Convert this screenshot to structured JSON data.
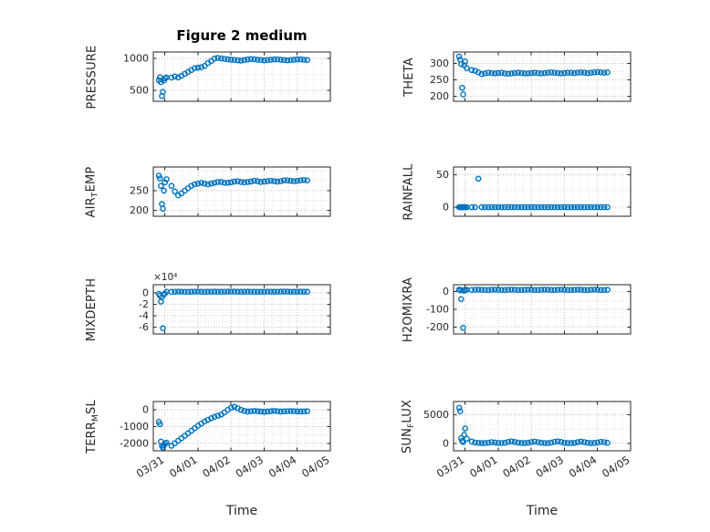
{
  "figure": {
    "title": "Figure 2 medium",
    "background": "#ffffff"
  },
  "chart_data": {
    "type": "scatter",
    "marker": {
      "shape": "circle-open",
      "color": "#0072BD",
      "radius_px": 2.6
    },
    "grid": {
      "on": true,
      "style": "dotted",
      "major_color": "#c2c2c2",
      "minor_color": "#e2e2e2"
    },
    "axis_color": "#262626",
    "x_axis": {
      "label": "Time",
      "xlim": [
        -0.35,
        5.0
      ],
      "ticks": [
        0,
        1,
        2,
        3,
        4,
        5
      ],
      "tick_labels": [
        "03/31",
        "04/01",
        "04/02",
        "04/03",
        "04/04",
        "04/05"
      ]
    },
    "x": [
      -0.18,
      -0.15,
      -0.12,
      -0.09,
      -0.06,
      -0.03,
      0,
      0.05,
      0.2,
      0.3,
      0.4,
      0.5,
      0.6,
      0.7,
      0.8,
      0.9,
      1.0,
      1.1,
      1.2,
      1.3,
      1.4,
      1.5,
      1.6,
      1.7,
      1.8,
      1.9,
      2.0,
      2.1,
      2.2,
      2.3,
      2.4,
      2.5,
      2.6,
      2.7,
      2.8,
      2.9,
      3.0,
      3.1,
      3.2,
      3.3,
      3.4,
      3.5,
      3.6,
      3.7,
      3.8,
      3.9,
      4.0,
      4.1,
      4.2,
      4.3
    ],
    "plots": [
      {
        "id": "pressure",
        "row": 0,
        "col": 0,
        "ylabel": [
          {
            "t": "PRESSURE"
          }
        ],
        "ylim": [
          330,
          1100
        ],
        "yticks": [
          500,
          1000
        ],
        "show_x_tick_labels": false,
        "y": [
          660,
          705,
          628,
          412,
          478,
          655,
          690,
          702,
          700,
          718,
          702,
          728,
          758,
          788,
          818,
          848,
          856,
          862,
          882,
          928,
          958,
          998,
          1008,
          1000,
          992,
          986,
          980,
          976,
          970,
          966,
          974,
          984,
          990,
          986,
          980,
          976,
          970,
          975,
          980,
          985,
          985,
          980,
          975,
          970,
          975,
          980,
          985,
          985,
          980,
          975
        ]
      },
      {
        "id": "theta",
        "row": 0,
        "col": 1,
        "ylabel": [
          {
            "t": "THETA"
          }
        ],
        "ylim": [
          185,
          335
        ],
        "yticks": [
          200,
          250,
          300
        ],
        "show_x_tick_labels": false,
        "y": [
          321,
          312,
          298,
          226,
          206,
          295,
          306,
          286,
          280,
          278,
          273,
          268,
          270,
          272,
          271,
          270,
          271,
          272,
          270,
          269,
          270,
          271,
          272,
          271,
          270,
          270,
          271,
          272,
          271,
          270,
          271,
          272,
          273,
          272,
          271,
          270,
          271,
          272,
          272,
          271,
          272,
          273,
          272,
          271,
          272,
          273,
          274,
          273,
          272,
          273
        ]
      },
      {
        "id": "air_temp",
        "row": 1,
        "col": 0,
        "ylabel": [
          {
            "t": "AIR"
          },
          {
            "t": "T",
            "sub": true
          },
          {
            "t": "EMP"
          }
        ],
        "ylim": [
          185,
          310
        ],
        "yticks": [
          200,
          250
        ],
        "show_x_tick_labels": false,
        "y": [
          288,
          281,
          262,
          216,
          204,
          250,
          271,
          279,
          262,
          248,
          238,
          243,
          250,
          256,
          262,
          266,
          268,
          270,
          268,
          266,
          268,
          270,
          272,
          272,
          270,
          270,
          271,
          273,
          274,
          272,
          271,
          272,
          273,
          275,
          274,
          272,
          273,
          274,
          275,
          274,
          273,
          274,
          276,
          276,
          275,
          274,
          275,
          276,
          277,
          276
        ]
      },
      {
        "id": "rainfall",
        "row": 1,
        "col": 1,
        "ylabel": [
          {
            "t": "RAINFALL"
          }
        ],
        "ylim": [
          -14,
          62
        ],
        "yticks": [
          0,
          50
        ],
        "show_x_tick_labels": false,
        "y": [
          0,
          0,
          0,
          0,
          0,
          0,
          0,
          0,
          0,
          0,
          44,
          0,
          0,
          0,
          0,
          0,
          0,
          0,
          0,
          0,
          0,
          0,
          0,
          0,
          0,
          0,
          0,
          0,
          0,
          0,
          0,
          0,
          0,
          0,
          0,
          0,
          0,
          0,
          0,
          0,
          0,
          0,
          0,
          0,
          0,
          0,
          0,
          0,
          0,
          0
        ]
      },
      {
        "id": "mixdepth",
        "row": 2,
        "col": 0,
        "ylabel": [
          {
            "t": "MIXDEPTH"
          }
        ],
        "ylim": [
          -72000,
          14000
        ],
        "yticks": [
          -60000,
          -40000,
          -20000,
          0
        ],
        "exponent": 4,
        "multiplier_label": "×10⁴",
        "show_x_tick_labels": false,
        "y": [
          -2000,
          -5200,
          -15500,
          -8000,
          -62000,
          -3000,
          -1200,
          1800,
          1500,
          1800,
          2000,
          1700,
          1500,
          1600,
          1800,
          2000,
          1900,
          1700,
          1600,
          1700,
          1800,
          1900,
          1800,
          1700,
          1800,
          1900,
          2000,
          1900,
          1800,
          1700,
          1800,
          1900,
          1800,
          1700,
          1600,
          1700,
          1800,
          1900,
          1800,
          1700,
          1800,
          1900,
          2000,
          1900,
          1800,
          1700,
          1800,
          1900,
          1800,
          1700
        ]
      },
      {
        "id": "h2omixra",
        "row": 2,
        "col": 1,
        "ylabel": [
          {
            "t": "H2OMIXRA"
          }
        ],
        "ylim": [
          -240,
          40
        ],
        "yticks": [
          -200,
          -100,
          0
        ],
        "show_x_tick_labels": false,
        "y": [
          12,
          8,
          -42,
          9,
          -205,
          6,
          9,
          11,
          10,
          11,
          12,
          11,
          10,
          10,
          11,
          12,
          11,
          10,
          10,
          11,
          12,
          11,
          10,
          10,
          11,
          12,
          11,
          10,
          10,
          11,
          12,
          11,
          10,
          10,
          11,
          12,
          11,
          10,
          10,
          11,
          12,
          11,
          10,
          10,
          11,
          12,
          11,
          10,
          10,
          11
        ]
      },
      {
        "id": "terr_msl",
        "row": 3,
        "col": 0,
        "ylabel": [
          {
            "t": "TERR"
          },
          {
            "t": "M",
            "sub": true
          },
          {
            "t": "SL"
          }
        ],
        "ylim": [
          -2450,
          500
        ],
        "yticks": [
          -2000,
          -1000,
          0
        ],
        "show_x_tick_labels": true,
        "y": [
          -720,
          -860,
          -1900,
          -2150,
          -2260,
          -2120,
          -2020,
          -1960,
          -2150,
          -2000,
          -1850,
          -1700,
          -1550,
          -1400,
          -1250,
          -1100,
          -950,
          -820,
          -700,
          -600,
          -500,
          -420,
          -350,
          -280,
          -150,
          0,
          130,
          180,
          100,
          0,
          -60,
          -100,
          -80,
          -60,
          -80,
          -100,
          -120,
          -100,
          -80,
          -60,
          -80,
          -100,
          -90,
          -80,
          -70,
          -80,
          -90,
          -100,
          -90,
          -80
        ]
      },
      {
        "id": "sun_flux",
        "row": 3,
        "col": 1,
        "ylabel": [
          {
            "t": "SUN"
          },
          {
            "t": "F",
            "sub": true
          },
          {
            "t": "LUX"
          }
        ],
        "ylim": [
          -1300,
          7300
        ],
        "yticks": [
          0,
          5000
        ],
        "show_x_tick_labels": true,
        "y": [
          6200,
          5600,
          900,
          420,
          220,
          1500,
          2600,
          800,
          300,
          150,
          80,
          50,
          40,
          100,
          200,
          150,
          80,
          50,
          100,
          250,
          350,
          250,
          120,
          60,
          40,
          100,
          220,
          300,
          200,
          100,
          50,
          40,
          120,
          260,
          340,
          240,
          110,
          50,
          40,
          90,
          210,
          310,
          200,
          100,
          50,
          60,
          140,
          260,
          200,
          100
        ]
      }
    ]
  }
}
